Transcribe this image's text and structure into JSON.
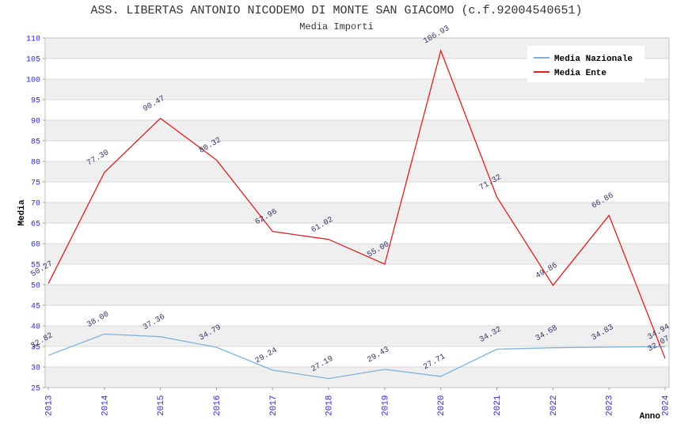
{
  "title": "ASS. LIBERTAS ANTONIO NICODEMO DI MONTE SAN GIACOMO (c.f.92004540651)",
  "subtitle": "Media Importi",
  "chart_data": {
    "type": "line",
    "title": "ASS. LIBERTAS ANTONIO NICODEMO DI MONTE SAN GIACOMO (c.f.92004540651)",
    "subtitle": "Media Importi",
    "xlabel": "Anno",
    "ylabel": "Media",
    "categories": [
      "2013",
      "2014",
      "2015",
      "2016",
      "2017",
      "2018",
      "2019",
      "2020",
      "2021",
      "2022",
      "2023",
      "2024"
    ],
    "series": [
      {
        "name": "Media Nazionale",
        "color": "#7fb2d9",
        "values": [
          32.82,
          38.0,
          37.36,
          34.79,
          29.24,
          27.19,
          29.43,
          27.71,
          34.32,
          34.68,
          34.83,
          34.94
        ]
      },
      {
        "name": "Media Ente",
        "color": "#dd2020",
        "values": [
          50.27,
          77.3,
          90.47,
          80.32,
          62.96,
          61.02,
          55.0,
          106.93,
          71.32,
          49.86,
          66.86,
          32.07
        ]
      }
    ],
    "ylim": [
      25,
      110
    ],
    "ytick_step": 5,
    "grid": true,
    "legend_position": "top-right",
    "band_colors": [
      "#efefef",
      "#ffffff"
    ],
    "tick_color": "#2a2acc",
    "label_color": "#333366",
    "legend_text_color": "#000000"
  }
}
